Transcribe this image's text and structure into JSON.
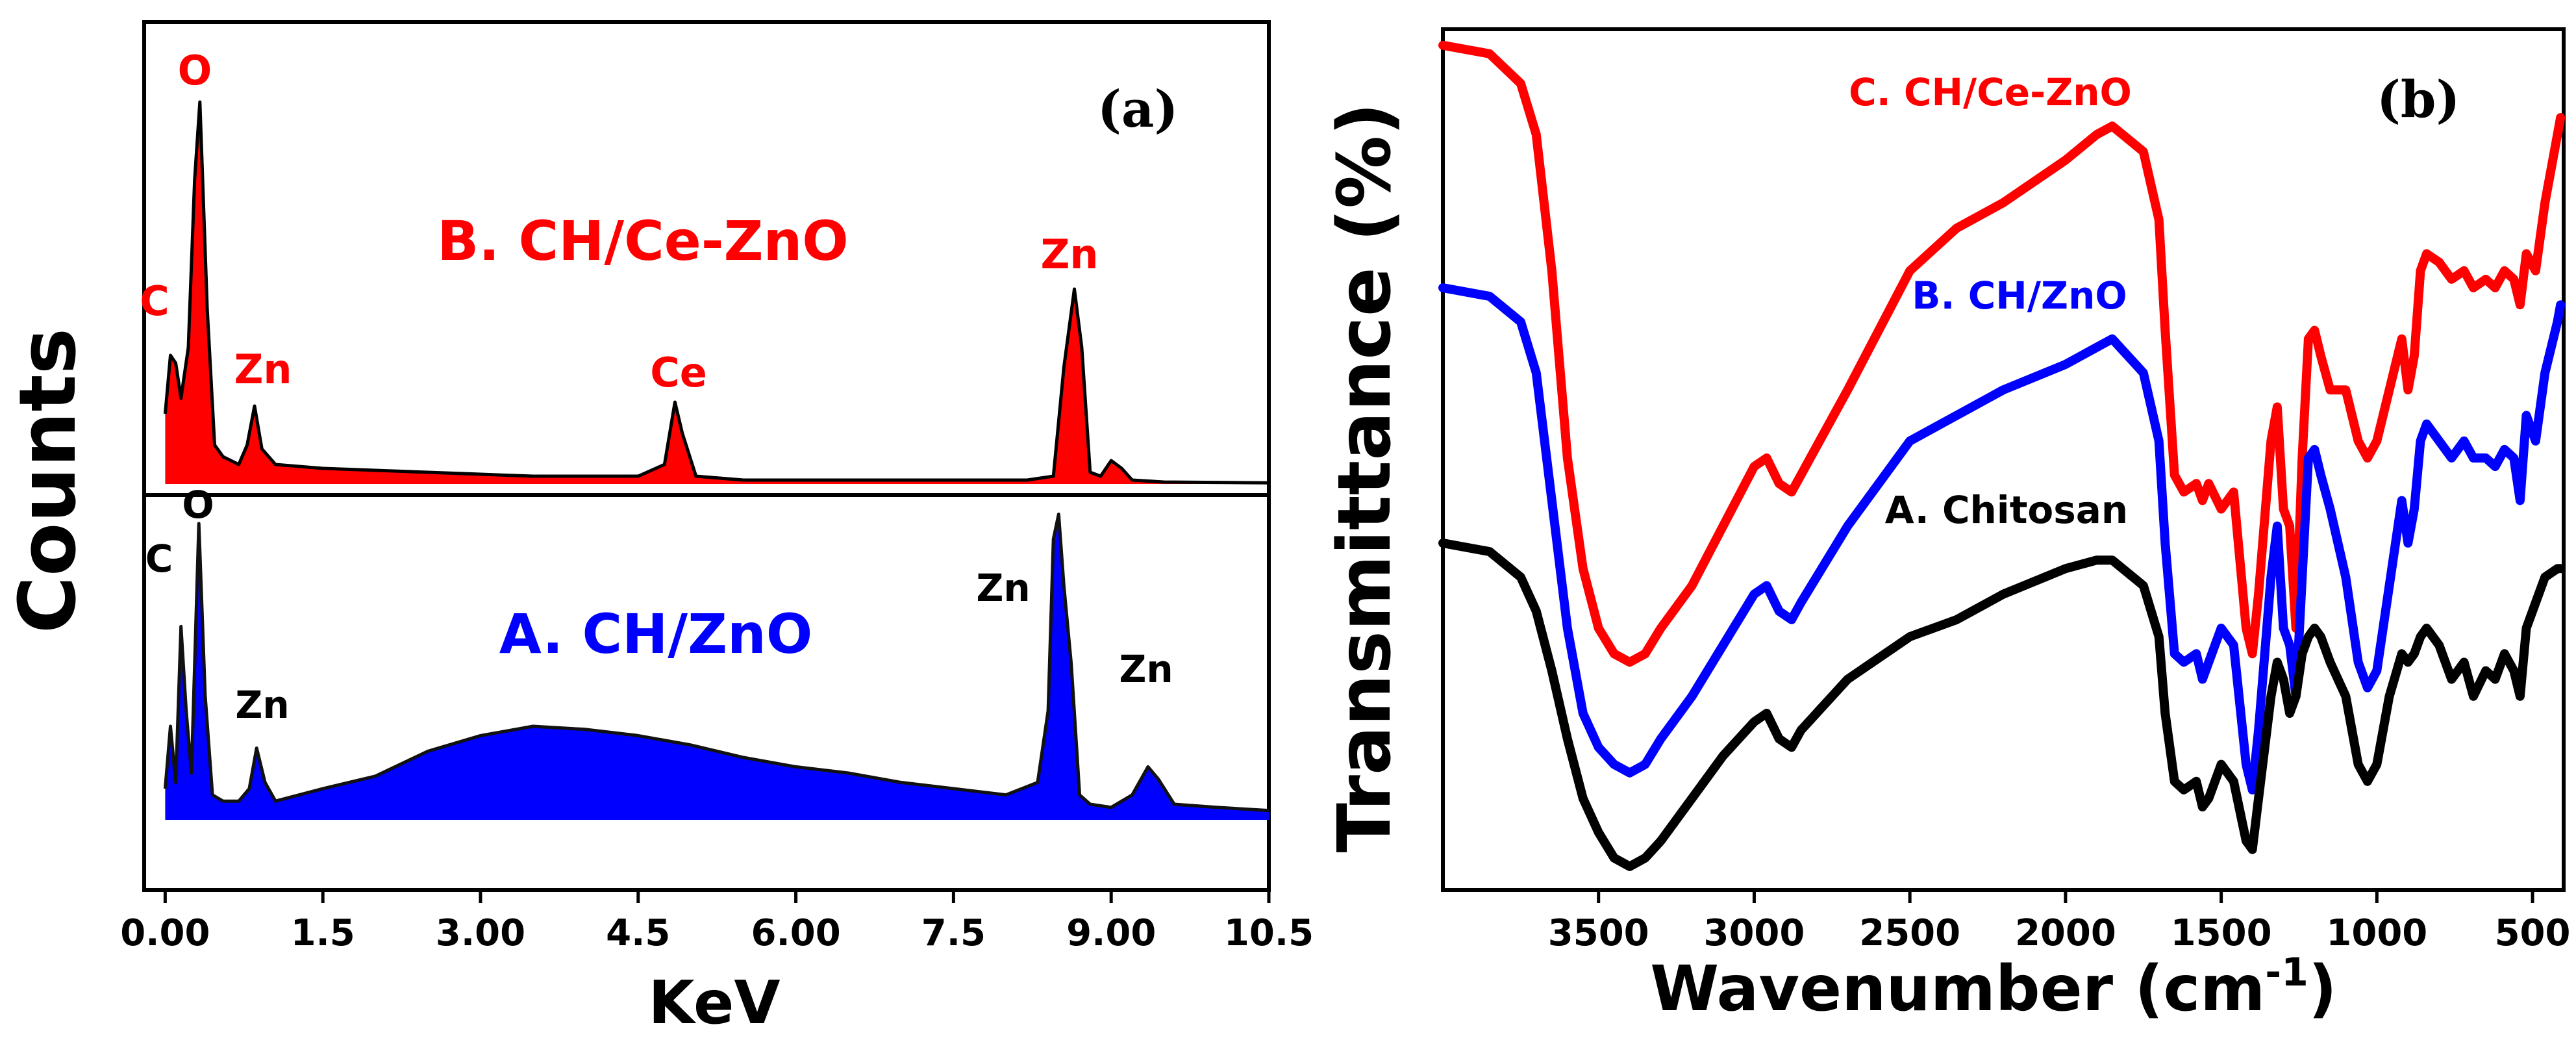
{
  "chart_data": [
    {
      "type": "line",
      "panel_label": "(a)",
      "title": "",
      "xlabel": "KeV",
      "ylabel": "Counts",
      "xlim": [
        -0.2,
        10.5
      ],
      "xticks": [
        "0.00",
        "1.5",
        "3.00",
        "4.5",
        "6.00",
        "7.5",
        "9.00",
        "10.5"
      ],
      "xtick_values": [
        0,
        1.5,
        3,
        4.5,
        6,
        7.5,
        9,
        10.5
      ],
      "series": [
        {
          "name": "B. CH/Ce-ZnO",
          "color": "#ff0000",
          "x": [
            0.0,
            0.05,
            0.1,
            0.15,
            0.22,
            0.28,
            0.33,
            0.4,
            0.47,
            0.55,
            0.7,
            0.78,
            0.85,
            0.92,
            1.05,
            1.5,
            2.0,
            2.5,
            3.0,
            3.5,
            4.0,
            4.5,
            4.75,
            4.85,
            4.92,
            5.05,
            5.5,
            6.5,
            7.5,
            8.2,
            8.45,
            8.55,
            8.65,
            8.72,
            8.8,
            8.9,
            9.0,
            9.1,
            9.2,
            9.5,
            10.5
          ],
          "y": [
            0.18,
            0.33,
            0.31,
            0.22,
            0.35,
            0.78,
            0.98,
            0.45,
            0.1,
            0.07,
            0.05,
            0.1,
            0.2,
            0.09,
            0.05,
            0.04,
            0.035,
            0.03,
            0.025,
            0.02,
            0.02,
            0.02,
            0.05,
            0.21,
            0.13,
            0.02,
            0.01,
            0.01,
            0.01,
            0.01,
            0.02,
            0.3,
            0.5,
            0.35,
            0.03,
            0.02,
            0.06,
            0.04,
            0.01,
            0.005,
            0.003
          ]
        },
        {
          "name": "A. CH/ZnO",
          "color": "#0000ff",
          "x": [
            0.0,
            0.05,
            0.1,
            0.15,
            0.2,
            0.25,
            0.32,
            0.38,
            0.45,
            0.55,
            0.7,
            0.8,
            0.87,
            0.95,
            1.05,
            1.5,
            2.0,
            2.5,
            3.0,
            3.5,
            4.0,
            4.5,
            5.0,
            5.5,
            6.0,
            6.5,
            7.0,
            7.5,
            8.0,
            8.3,
            8.4,
            8.45,
            8.5,
            8.55,
            8.62,
            8.7,
            8.8,
            9.0,
            9.2,
            9.35,
            9.45,
            9.6,
            10.0,
            10.5
          ],
          "y": [
            0.1,
            0.3,
            0.12,
            0.62,
            0.35,
            0.15,
            0.95,
            0.4,
            0.08,
            0.06,
            0.06,
            0.1,
            0.23,
            0.12,
            0.06,
            0.1,
            0.14,
            0.22,
            0.27,
            0.3,
            0.29,
            0.27,
            0.24,
            0.2,
            0.17,
            0.15,
            0.12,
            0.1,
            0.08,
            0.12,
            0.35,
            0.9,
            0.98,
            0.75,
            0.5,
            0.08,
            0.05,
            0.04,
            0.08,
            0.17,
            0.13,
            0.05,
            0.04,
            0.03
          ]
        }
      ],
      "annotations": {
        "series_b_title": "B. CH/Ce-ZnO",
        "series_a_title": "A. CH/ZnO",
        "b_peaks": [
          "O",
          "C",
          "Zn",
          "Ce",
          "Zn"
        ],
        "a_peaks": [
          "C",
          "O",
          "Zn",
          "Zn",
          "Zn"
        ]
      }
    },
    {
      "type": "line",
      "panel_label": "(b)",
      "title": "",
      "xlabel": "Wavenumber (cm",
      "xlabel_sup": "-1",
      "xlabel_end": ")",
      "ylabel": "Transmittance (%)",
      "xlim": [
        4000,
        400
      ],
      "xticks": [
        "3500",
        "3000",
        "2500",
        "2000",
        "1500",
        "1000",
        "500"
      ],
      "xtick_values": [
        3500,
        3000,
        2500,
        2000,
        1500,
        1000,
        500
      ],
      "series": [
        {
          "name": "C. CH/Ce-ZnO",
          "color": "#ff0000",
          "x": [
            4000,
            3850,
            3750,
            3700,
            3650,
            3600,
            3550,
            3500,
            3450,
            3400,
            3350,
            3300,
            3200,
            3100,
            3000,
            2960,
            2920,
            2880,
            2850,
            2700,
            2500,
            2350,
            2300,
            2200,
            2000,
            1900,
            1850,
            1750,
            1700,
            1680,
            1650,
            1620,
            1580,
            1560,
            1540,
            1500,
            1460,
            1420,
            1400,
            1380,
            1340,
            1320,
            1300,
            1280,
            1260,
            1240,
            1220,
            1200,
            1180,
            1150,
            1100,
            1060,
            1030,
            1000,
            960,
            920,
            900,
            880,
            860,
            840,
            800,
            760,
            720,
            690,
            650,
            620,
            590,
            560,
            540,
            520,
            490,
            460,
            420,
            410
          ],
          "y": [
            0.985,
            0.975,
            0.94,
            0.88,
            0.72,
            0.5,
            0.37,
            0.3,
            0.27,
            0.26,
            0.27,
            0.3,
            0.35,
            0.42,
            0.49,
            0.5,
            0.47,
            0.46,
            0.48,
            0.58,
            0.72,
            0.77,
            0.78,
            0.8,
            0.85,
            0.88,
            0.89,
            0.86,
            0.78,
            0.65,
            0.48,
            0.46,
            0.47,
            0.45,
            0.47,
            0.44,
            0.46,
            0.3,
            0.27,
            0.34,
            0.52,
            0.56,
            0.44,
            0.42,
            0.3,
            0.5,
            0.64,
            0.65,
            0.62,
            0.58,
            0.58,
            0.52,
            0.5,
            0.52,
            0.58,
            0.64,
            0.58,
            0.62,
            0.72,
            0.74,
            0.73,
            0.71,
            0.72,
            0.7,
            0.71,
            0.7,
            0.72,
            0.71,
            0.68,
            0.74,
            0.72,
            0.8,
            0.88,
            0.9
          ]
        },
        {
          "name": "B. CH/ZnO",
          "color": "#0000ff",
          "x": [
            4000,
            3850,
            3750,
            3700,
            3650,
            3600,
            3550,
            3500,
            3450,
            3400,
            3350,
            3300,
            3200,
            3100,
            3000,
            2960,
            2920,
            2880,
            2850,
            2700,
            2500,
            2350,
            2300,
            2200,
            2000,
            1900,
            1850,
            1750,
            1700,
            1680,
            1650,
            1620,
            1580,
            1560,
            1540,
            1500,
            1460,
            1420,
            1400,
            1380,
            1340,
            1320,
            1300,
            1280,
            1260,
            1240,
            1220,
            1200,
            1180,
            1150,
            1100,
            1060,
            1030,
            1000,
            960,
            920,
            900,
            880,
            860,
            840,
            800,
            760,
            720,
            690,
            650,
            620,
            590,
            560,
            540,
            520,
            490,
            460,
            420,
            410
          ],
          "y": [
            0.7,
            0.69,
            0.66,
            0.6,
            0.45,
            0.3,
            0.2,
            0.16,
            0.14,
            0.13,
            0.14,
            0.17,
            0.22,
            0.28,
            0.34,
            0.35,
            0.32,
            0.31,
            0.33,
            0.42,
            0.52,
            0.55,
            0.56,
            0.58,
            0.61,
            0.63,
            0.64,
            0.6,
            0.52,
            0.4,
            0.27,
            0.26,
            0.27,
            0.24,
            0.26,
            0.3,
            0.28,
            0.14,
            0.11,
            0.18,
            0.36,
            0.42,
            0.3,
            0.28,
            0.22,
            0.36,
            0.5,
            0.51,
            0.48,
            0.44,
            0.36,
            0.26,
            0.23,
            0.25,
            0.35,
            0.45,
            0.4,
            0.44,
            0.52,
            0.54,
            0.52,
            0.5,
            0.52,
            0.5,
            0.5,
            0.49,
            0.51,
            0.5,
            0.45,
            0.55,
            0.52,
            0.6,
            0.66,
            0.68
          ]
        },
        {
          "name": "A. Chitosan",
          "color": "#000000",
          "x": [
            4000,
            3850,
            3750,
            3700,
            3650,
            3600,
            3550,
            3500,
            3450,
            3400,
            3350,
            3300,
            3200,
            3100,
            3000,
            2960,
            2920,
            2880,
            2850,
            2700,
            2500,
            2350,
            2300,
            2200,
            2000,
            1900,
            1850,
            1750,
            1700,
            1680,
            1650,
            1620,
            1580,
            1560,
            1540,
            1500,
            1460,
            1420,
            1400,
            1380,
            1340,
            1320,
            1300,
            1280,
            1260,
            1240,
            1220,
            1200,
            1180,
            1150,
            1100,
            1060,
            1030,
            1000,
            960,
            920,
            900,
            880,
            860,
            840,
            800,
            760,
            720,
            690,
            650,
            620,
            590,
            560,
            540,
            520,
            490,
            460,
            420,
            410
          ],
          "y": [
            0.4,
            0.39,
            0.36,
            0.32,
            0.25,
            0.17,
            0.1,
            0.06,
            0.03,
            0.02,
            0.03,
            0.05,
            0.1,
            0.15,
            0.19,
            0.2,
            0.17,
            0.16,
            0.18,
            0.24,
            0.29,
            0.31,
            0.32,
            0.34,
            0.37,
            0.38,
            0.38,
            0.35,
            0.29,
            0.2,
            0.12,
            0.11,
            0.12,
            0.09,
            0.1,
            0.14,
            0.12,
            0.05,
            0.04,
            0.1,
            0.22,
            0.26,
            0.24,
            0.2,
            0.22,
            0.27,
            0.29,
            0.3,
            0.29,
            0.26,
            0.22,
            0.14,
            0.12,
            0.14,
            0.22,
            0.27,
            0.26,
            0.27,
            0.29,
            0.3,
            0.28,
            0.24,
            0.26,
            0.22,
            0.25,
            0.24,
            0.27,
            0.25,
            0.22,
            0.3,
            0.33,
            0.36,
            0.37,
            0.37
          ]
        }
      ]
    }
  ]
}
